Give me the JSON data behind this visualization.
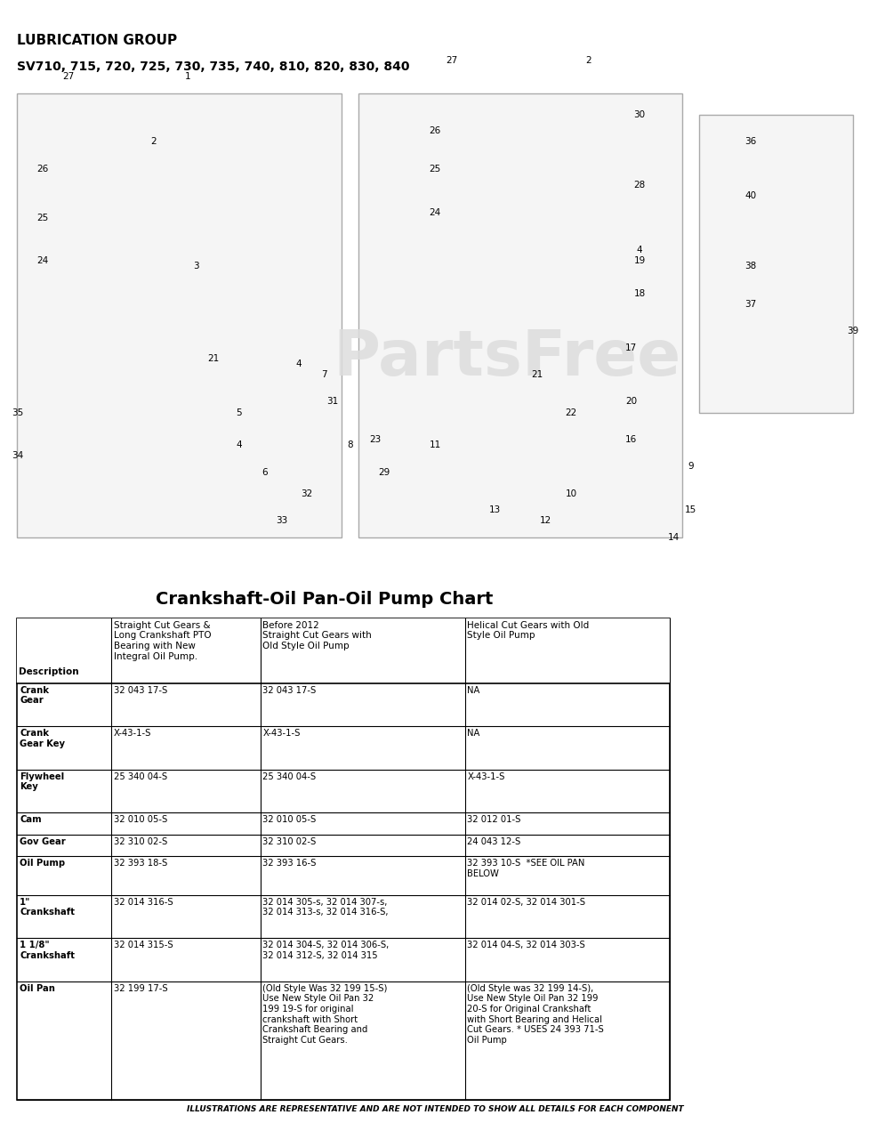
{
  "title_line1": "LUBRICATION GROUP",
  "title_line2": "SV710, 715, 720, 725, 730, 735, 740, 810, 820, 830, 840",
  "chart_title": "Crankshaft-Oil Pan-Oil Pump Chart",
  "watermark": "PartsFree",
  "footer": "ILLUSTRATIONS ARE REPRESENTATIVE AND ARE NOT INTENDED TO SHOW ALL DETAILS FOR EACH COMPONENT",
  "bg_color": "#ffffff",
  "table_header_col1": "Description",
  "table_header_col2_line1": "Straight Cut Gears &",
  "table_header_col2_line2": "Long Crankshaft PTO",
  "table_header_col2_line3": "Bearing with New",
  "table_header_col2_line4": "Integral Oil Pump.",
  "table_header_col3_line1": "Before 2012",
  "table_header_col3_line2": "Straight Cut Gears with",
  "table_header_col3_line3": "Old Style Oil Pump",
  "table_header_col4_line1": "Helical Cut Gears with Old",
  "table_header_col4_line2": "Style Oil Pump",
  "rows": [
    {
      "desc": "Crank\nGear",
      "col2": "32 043 17-S",
      "col3": "32 043 17-S",
      "col4": "NA",
      "bold_desc": true
    },
    {
      "desc": "Crank\nGear Key",
      "col2": "X-43-1-S",
      "col3": "X-43-1-S",
      "col4": "NA",
      "bold_desc": true
    },
    {
      "desc": "Flywheel\nKey",
      "col2": "25 340 04-S",
      "col3": "25 340 04-S",
      "col4": "X-43-1-S",
      "bold_desc": true
    },
    {
      "desc": "Cam",
      "col2": "32 010 05-S",
      "col3": "32 010 05-S",
      "col4": "32 012 01-S",
      "bold_desc": true
    },
    {
      "desc": "Gov Gear",
      "col2": "32 310 02-S",
      "col3": "32 310 02-S",
      "col4": "24 043 12-S",
      "bold_desc": true
    },
    {
      "desc": "Oil Pump",
      "col2": "32 393 18-S",
      "col3": "32 393 16-S",
      "col4": "32 393 10-S  *SEE OIL PAN\nBELOW",
      "bold_desc": true
    },
    {
      "desc": "1\"\nCrankshaft",
      "col2": "32 014 316-S",
      "col3": "32 014 305-s, 32 014 307-s,\n32 014 313-s, 32 014 316-S,",
      "col4": "32 014 02-S, 32 014 301-S",
      "bold_desc": true
    },
    {
      "desc": "1 1/8\"\nCrankshaft",
      "col2": "32 014 315-S",
      "col3": "32 014 304-S, 32 014 306-S,\n32 014 312-S, 32 014 315",
      "col4": "32 014 04-S, 32 014 303-S",
      "bold_desc": true
    },
    {
      "desc": "Oil Pan",
      "col2": "32 199 17-S",
      "col3": "(Old Style Was 32 199 15-S)\nUse New Style Oil Pan 32\n199 19-S for original\ncrankshaft with Short\nCrankshaft Bearing and\nStraight Cut Gears.",
      "col4": "(Old Style was 32 199 14-S),\nUse New Style Oil Pan 32 199\n20-S for Original Crankshaft\nwith Short Bearing and Helical\nCut Gears. * USES 24 393 71-S\nOil Pump",
      "bold_desc": true
    }
  ]
}
